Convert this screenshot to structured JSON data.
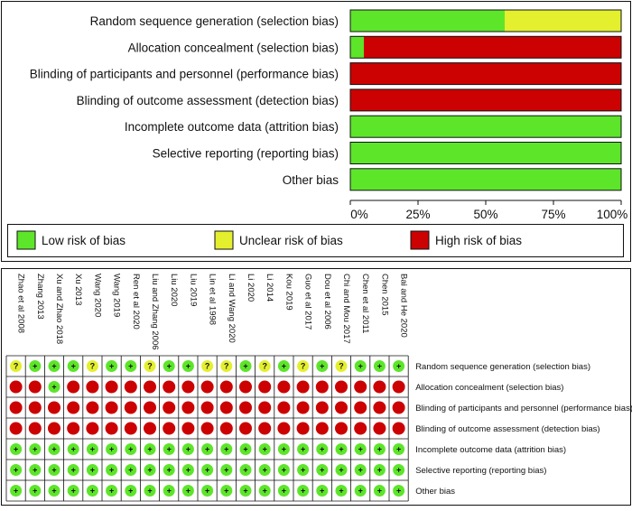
{
  "colors": {
    "low": "#5de52a",
    "unclear": "#e4ef2e",
    "high": "#cc0202",
    "frame": "#111111"
  },
  "chart_data": [
    {
      "type": "bar",
      "orientation": "horizontal",
      "stacked": true,
      "title": "",
      "xlabel": "",
      "ylabel": "",
      "xlim": [
        0,
        100
      ],
      "ticks": [
        "0%",
        "25%",
        "50%",
        "75%",
        "100%"
      ],
      "categories": [
        "Random sequence generation (selection bias)",
        "Allocation concealment (selection bias)",
        "Blinding of participants and personnel (performance bias)",
        "Blinding of outcome assessment (detection bias)",
        "Incomplete outcome data (attrition bias)",
        "Selective reporting (reporting bias)",
        "Other bias"
      ],
      "series": [
        {
          "name": "Low risk of bias",
          "color": "#5de52a",
          "values": [
            57,
            5,
            0,
            0,
            100,
            100,
            100
          ]
        },
        {
          "name": "Unclear risk of bias",
          "color": "#e4ef2e",
          "values": [
            43,
            0,
            0,
            0,
            0,
            0,
            0
          ]
        },
        {
          "name": "High risk of bias",
          "color": "#cc0202",
          "values": [
            0,
            95,
            100,
            100,
            0,
            0,
            0
          ]
        }
      ],
      "legend": [
        "Low risk of bias",
        "Unclear risk of bias",
        "High risk of bias"
      ],
      "legend_position": "bottom"
    },
    {
      "type": "table",
      "studies": [
        "Zhao et al 2008",
        "Zhang 2013",
        "Xu and Zhao 2018",
        "Xu 2013",
        "Wang 2020",
        "Wang 2019",
        "Ren et al 2020",
        "Liu and Zhang 2006",
        "Liu 2020",
        "Liu 2019",
        "Lin et al 1998",
        "Li and Wang 2020",
        "Li 2020",
        "Li 2014",
        "Kou 2019",
        "Guo et al 2017",
        "Dou et al 2006",
        "Chi and Mou 2017",
        "Chen et al 2011",
        "Chen 2015",
        "Bai and He 2020"
      ],
      "domains": [
        "Random sequence generation (selection bias)",
        "Allocation concealment (selection bias)",
        "Blinding of participants and personnel (performance bias)",
        "Blinding of outcome assessment (detection bias)",
        "Incomplete outcome data (attrition bias)",
        "Selective reporting (reporting bias)",
        "Other bias"
      ],
      "symbols": {
        "low": "+",
        "unclear": "?",
        "high": ""
      },
      "judgements": [
        [
          "unclear",
          "low",
          "low",
          "low",
          "unclear",
          "low",
          "low",
          "unclear",
          "low",
          "low",
          "unclear",
          "unclear",
          "low",
          "unclear",
          "low",
          "unclear",
          "low",
          "unclear",
          "low",
          "low",
          "low"
        ],
        [
          "high",
          "high",
          "low",
          "high",
          "high",
          "high",
          "high",
          "high",
          "high",
          "high",
          "high",
          "high",
          "high",
          "high",
          "high",
          "high",
          "high",
          "high",
          "high",
          "high",
          "high"
        ],
        [
          "high",
          "high",
          "high",
          "high",
          "high",
          "high",
          "high",
          "high",
          "high",
          "high",
          "high",
          "high",
          "high",
          "high",
          "high",
          "high",
          "high",
          "high",
          "high",
          "high",
          "high"
        ],
        [
          "high",
          "high",
          "high",
          "high",
          "high",
          "high",
          "high",
          "high",
          "high",
          "high",
          "high",
          "high",
          "high",
          "high",
          "high",
          "high",
          "high",
          "high",
          "high",
          "high",
          "high"
        ],
        [
          "low",
          "low",
          "low",
          "low",
          "low",
          "low",
          "low",
          "low",
          "low",
          "low",
          "low",
          "low",
          "low",
          "low",
          "low",
          "low",
          "low",
          "low",
          "low",
          "low",
          "low"
        ],
        [
          "low",
          "low",
          "low",
          "low",
          "low",
          "low",
          "low",
          "low",
          "low",
          "low",
          "low",
          "low",
          "low",
          "low",
          "low",
          "low",
          "low",
          "low",
          "low",
          "low",
          "low"
        ],
        [
          "low",
          "low",
          "low",
          "low",
          "low",
          "low",
          "low",
          "low",
          "low",
          "low",
          "low",
          "low",
          "low",
          "low",
          "low",
          "low",
          "low",
          "low",
          "low",
          "low",
          "low"
        ]
      ]
    }
  ]
}
